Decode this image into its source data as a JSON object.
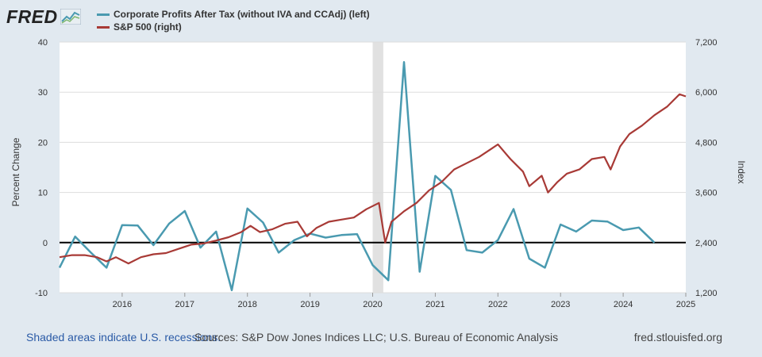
{
  "header": {
    "logo_text": "FRED"
  },
  "colors": {
    "series_left": "#4a9ab0",
    "series_right": "#a83a36",
    "recession": "#e1e1e1",
    "grid": "#dddddd",
    "zero_line": "#000000",
    "background": "#e1e9f0",
    "plot_bg": "#ffffff"
  },
  "footer": {
    "recession_note": "Shaded areas indicate U.S. recessions.",
    "sources": "Sources: S&P Dow Jones Indices LLC; U.S. Bureau of Economic Analysis",
    "site": "fred.stlouisfed.org"
  },
  "chart_data": {
    "type": "line",
    "title": "",
    "xlabel": "",
    "ylabel_left": "Percent Change",
    "ylabel_right": "Index",
    "x_ticks": [
      "2016",
      "2017",
      "2018",
      "2019",
      "2020",
      "2021",
      "2022",
      "2023",
      "2024",
      "2025"
    ],
    "y_left_ticks": [
      "-10",
      "0",
      "10",
      "20",
      "30",
      "40"
    ],
    "y_right_ticks": [
      "1,200",
      "2,400",
      "3,600",
      "4,800",
      "6,000",
      "7,200"
    ],
    "xlim": [
      2015.0,
      2025.0
    ],
    "ylim_left": [
      -10,
      40
    ],
    "ylim_right": [
      1200,
      7200
    ],
    "grid": true,
    "legend_position": "top-left",
    "recessions": [
      [
        2020.0,
        2020.17
      ]
    ],
    "series": [
      {
        "name": "Corporate Profits After Tax (without IVA and CCAdj) (left)",
        "axis": "left",
        "color": "#4a9ab0",
        "x": [
          2015.0,
          2015.25,
          2015.5,
          2015.75,
          2016.0,
          2016.25,
          2016.5,
          2016.75,
          2017.0,
          2017.25,
          2017.5,
          2017.75,
          2018.0,
          2018.25,
          2018.5,
          2018.75,
          2019.0,
          2019.25,
          2019.5,
          2019.75,
          2020.0,
          2020.25,
          2020.5,
          2020.75,
          2021.0,
          2021.25,
          2021.5,
          2021.75,
          2022.0,
          2022.25,
          2022.5,
          2022.75,
          2023.0,
          2023.25,
          2023.5,
          2023.75,
          2024.0,
          2024.25,
          2024.5
        ],
        "values": [
          -5.0,
          1.2,
          -2.0,
          -5.0,
          3.5,
          3.4,
          -0.5,
          3.8,
          6.3,
          -1.0,
          2.2,
          -9.5,
          6.8,
          4.0,
          -2.0,
          0.5,
          1.8,
          1.0,
          1.5,
          1.7,
          -4.5,
          -7.5,
          36.0,
          -5.8,
          13.3,
          10.5,
          -1.5,
          -2.0,
          0.5,
          6.7,
          -3.2,
          -5.0,
          3.6,
          2.2,
          4.4,
          4.2,
          2.5,
          3.0,
          0.0
        ]
      },
      {
        "name": "S&P 500 (right)",
        "axis": "right",
        "color": "#a83a36",
        "x": [
          2015.0,
          2015.2,
          2015.4,
          2015.6,
          2015.75,
          2015.9,
          2016.1,
          2016.3,
          2016.5,
          2016.7,
          2016.9,
          2017.1,
          2017.3,
          2017.5,
          2017.7,
          2017.9,
          2018.05,
          2018.2,
          2018.4,
          2018.6,
          2018.8,
          2018.95,
          2019.1,
          2019.3,
          2019.5,
          2019.7,
          2019.9,
          2020.1,
          2020.2,
          2020.3,
          2020.5,
          2020.7,
          2020.9,
          2021.1,
          2021.3,
          2021.5,
          2021.7,
          2021.9,
          2022.0,
          2022.2,
          2022.4,
          2022.5,
          2022.7,
          2022.8,
          2022.95,
          2023.1,
          2023.3,
          2023.5,
          2023.7,
          2023.8,
          2023.95,
          2024.1,
          2024.3,
          2024.5,
          2024.7,
          2024.9,
          2025.0
        ],
        "values": [
          2050,
          2100,
          2100,
          2050,
          1950,
          2050,
          1900,
          2050,
          2120,
          2150,
          2250,
          2350,
          2380,
          2450,
          2530,
          2650,
          2800,
          2650,
          2720,
          2850,
          2900,
          2550,
          2750,
          2900,
          2950,
          3000,
          3200,
          3350,
          2400,
          2900,
          3150,
          3350,
          3650,
          3850,
          4150,
          4300,
          4450,
          4650,
          4750,
          4400,
          4100,
          3750,
          4000,
          3600,
          3850,
          4050,
          4150,
          4400,
          4450,
          4150,
          4700,
          5000,
          5200,
          5450,
          5650,
          5950,
          5900
        ]
      }
    ]
  }
}
